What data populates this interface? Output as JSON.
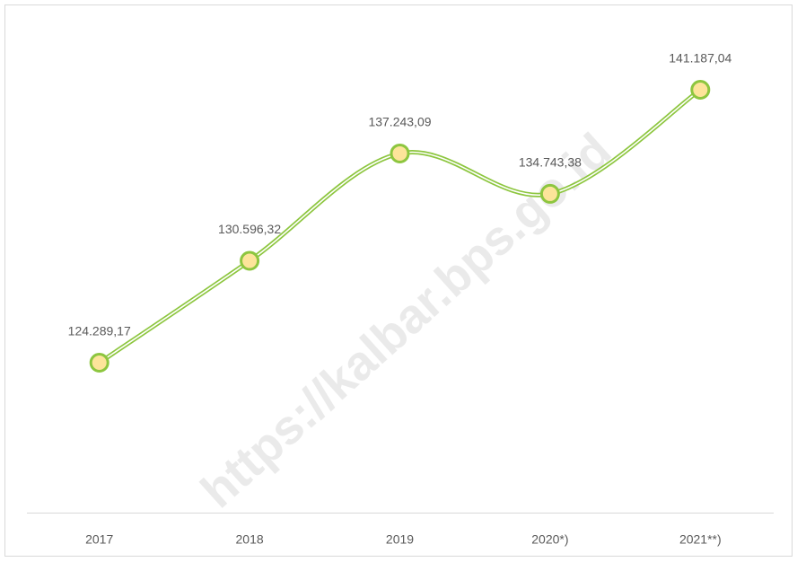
{
  "chart_data": {
    "type": "line",
    "categories": [
      "2017",
      "2018",
      "2019",
      "2020*)",
      "2021**)"
    ],
    "series": [
      {
        "color": "#8dc63f",
        "marker_color": "#fde49a",
        "values": [
          124289.17,
          130596.32,
          137243.09,
          134743.38,
          141187.04
        ],
        "value_labels": [
          "124.289,17",
          "130.596,32",
          "137.243,09",
          "134.743,38",
          "141.187,04"
        ]
      }
    ],
    "watermark": "https://kalbar.bps.go.id"
  }
}
